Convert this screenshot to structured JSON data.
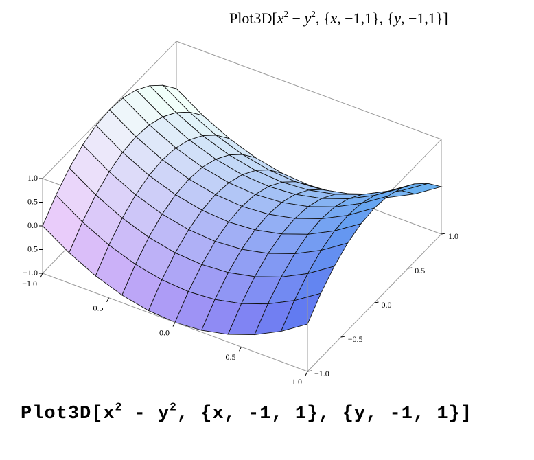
{
  "chart_data": {
    "type": "surface",
    "title": [
      "Plot3D[",
      "x",
      "2",
      " − ",
      "y",
      "2",
      ", {",
      "x",
      ", −1,1}, {",
      "y",
      ", −1,1}]"
    ],
    "caption": [
      "Plot3D[x",
      "2",
      " - y",
      "2",
      ", {x, -1, 1}, {y, -1, 1}]"
    ],
    "x": [
      -1,
      -0.8,
      -0.6,
      -0.4,
      -0.2,
      0,
      0.2,
      0.4,
      0.6,
      0.8,
      1
    ],
    "y": [
      -1,
      -0.8,
      -0.6,
      -0.4,
      -0.2,
      0,
      0.2,
      0.4,
      0.6,
      0.8,
      1
    ],
    "z": [
      [
        0,
        -0.36,
        -0.64,
        -0.84,
        -0.96,
        -1,
        -0.96,
        -0.84,
        -0.64,
        -0.36,
        0
      ],
      [
        0.36,
        0,
        -0.28,
        -0.48,
        -0.6,
        -0.64,
        -0.6,
        -0.48,
        -0.28,
        0,
        0.36
      ],
      [
        0.64,
        0.28,
        0,
        -0.2,
        -0.32,
        -0.36,
        -0.32,
        -0.2,
        0,
        0.28,
        0.64
      ],
      [
        0.84,
        0.48,
        0.2,
        0,
        -0.12,
        -0.16,
        -0.12,
        0,
        0.2,
        0.48,
        0.84
      ],
      [
        0.96,
        0.6,
        0.32,
        0.12,
        0,
        -0.04,
        0,
        0.12,
        0.32,
        0.6,
        0.96
      ],
      [
        1,
        0.64,
        0.36,
        0.16,
        0.04,
        0,
        0.04,
        0.16,
        0.36,
        0.64,
        1
      ],
      [
        0.96,
        0.6,
        0.32,
        0.12,
        0,
        -0.04,
        0,
        0.12,
        0.32,
        0.6,
        0.96
      ],
      [
        0.84,
        0.48,
        0.2,
        0,
        -0.12,
        -0.16,
        -0.12,
        0,
        0.2,
        0.48,
        0.84
      ],
      [
        0.64,
        0.28,
        0,
        -0.2,
        -0.32,
        -0.36,
        -0.32,
        -0.2,
        0,
        0.28,
        0.64
      ],
      [
        0.36,
        0,
        -0.28,
        -0.48,
        -0.6,
        -0.64,
        -0.6,
        -0.48,
        -0.28,
        0,
        0.36
      ],
      [
        0,
        -0.36,
        -0.64,
        -0.84,
        -0.96,
        -1,
        -0.96,
        -0.84,
        -0.64,
        -0.36,
        0
      ]
    ],
    "xlim": [
      -1,
      1
    ],
    "ylim": [
      -1,
      1
    ],
    "zlim": [
      -1,
      1
    ],
    "xticks": [
      {
        "value": -1,
        "label": "−1.0"
      },
      {
        "value": -0.5,
        "label": "−0.5"
      },
      {
        "value": 0,
        "label": "0.0"
      },
      {
        "value": 0.5,
        "label": "0.5"
      },
      {
        "value": 1,
        "label": "1.0"
      }
    ],
    "yticks": [
      {
        "value": -1,
        "label": "−1.0"
      },
      {
        "value": -0.5,
        "label": "−0.5"
      },
      {
        "value": 0,
        "label": "0.0"
      },
      {
        "value": 0.5,
        "label": "0.5"
      },
      {
        "value": 1,
        "label": "1.0"
      }
    ],
    "zticks": [
      {
        "value": -1,
        "label": "−1.0"
      },
      {
        "value": -0.5,
        "label": "−0.5"
      },
      {
        "value": 0,
        "label": "0.0"
      },
      {
        "value": 0.5,
        "label": "0.5"
      },
      {
        "value": 1,
        "label": "1.0"
      }
    ]
  }
}
